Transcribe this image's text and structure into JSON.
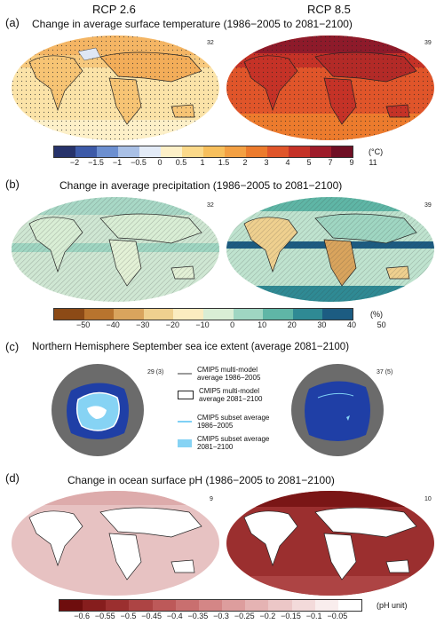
{
  "columns": {
    "left": "RCP 2.6",
    "right": "RCP 8.5"
  },
  "panels": {
    "a": {
      "letter": "(a)",
      "title": "Change in average surface temperature (1986−2005 to 2081−2100)",
      "left_count": "32",
      "right_count": "39",
      "ticks": [
        "−2",
        "−1.5",
        "−1",
        "−0.5",
        "0",
        "0.5",
        "1",
        "1.5",
        "2",
        "3",
        "4",
        "5",
        "7",
        "9",
        "11"
      ],
      "unit": "(°C)",
      "colors": [
        "#27336b",
        "#3d5aa8",
        "#6c8fd0",
        "#a9c0e6",
        "#e3ebf7",
        "#fdf0c8",
        "#fbd98a",
        "#f7bf5c",
        "#f3a043",
        "#ec7b2d",
        "#e0552a",
        "#c53227",
        "#9e1c2a",
        "#6f0f24"
      ]
    },
    "b": {
      "letter": "(b)",
      "title": "Change in average precipitation (1986−2005 to 2081−2100)",
      "left_count": "32",
      "right_count": "39",
      "ticks": [
        "−50",
        "−40",
        "−30",
        "−20",
        "−10",
        "0",
        "10",
        "20",
        "30",
        "40",
        "50"
      ],
      "unit": "(%)",
      "colors": [
        "#8c4a16",
        "#b8742e",
        "#d9a45d",
        "#efd08f",
        "#fbecc0",
        "#d9eed5",
        "#9fd6c2",
        "#5fb6a6",
        "#2f8a94",
        "#1c5c82"
      ]
    },
    "c": {
      "letter": "(c)",
      "title": "Northern Hemisphere September sea ice extent (average 2081−2100)",
      "left_count": "29 (3)",
      "right_count": "37 (5)",
      "legend": [
        {
          "text": "CMIP5 multi-model average 1986−2005",
          "swatch": "#9a9a9a"
        },
        {
          "text": "CMIP5 multi-model average 2081−2100",
          "swatch": "#ffffff"
        },
        {
          "text": "CMIP5 subset average 1986−2005",
          "swatch": "#7fd0f5"
        },
        {
          "text": "CMIP5 subset average 2081−2100",
          "swatch": "#86d3f4"
        }
      ]
    },
    "d": {
      "letter": "(d)",
      "title": "Change in ocean surface pH (1986−2005 to 2081−2100)",
      "left_count": "9",
      "right_count": "10",
      "ticks": [
        "−0.6",
        "−0.55",
        "−0.5",
        "−0.45",
        "−0.4",
        "−0.35",
        "−0.3",
        "−0.25",
        "−0.2",
        "−0.15",
        "−0.1",
        "−0.05"
      ],
      "unit": "(pH unit)",
      "colors": [
        "#6e0d0d",
        "#861d1d",
        "#9b2f2f",
        "#ad4444",
        "#bd5959",
        "#c96f6f",
        "#d48686",
        "#dd9d9d",
        "#e5b3b3",
        "#ecc7c7",
        "#f3dada",
        "#f9eded",
        "#ffffff"
      ]
    }
  }
}
